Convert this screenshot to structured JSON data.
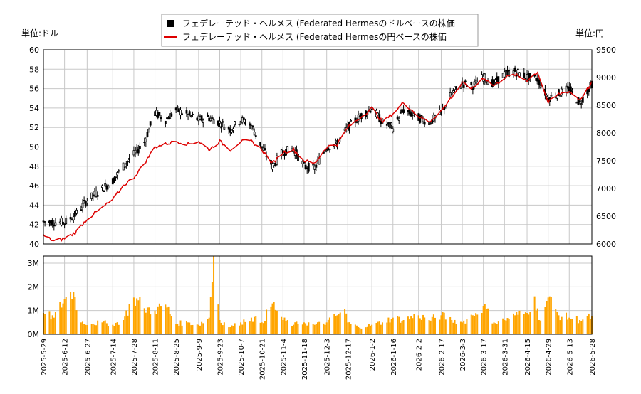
{
  "chart_data": [
    {
      "type": "candlestick+line",
      "legend": {
        "placement": "top-center",
        "entries": [
          "フェデレーテッド・ヘルメス (Federated Hermesのドルベースの株価",
          "フェデレーテッド・ヘルメス (Federated Hermesの円ベースの株価"
        ]
      },
      "left_axis_unit": "単位:ドル",
      "right_axis_unit": "単位:円",
      "ylim_left": [
        40,
        60
      ],
      "ylim_right": [
        6000,
        9500
      ],
      "left_ticks": [
        "40",
        "42",
        "44",
        "46",
        "48",
        "50",
        "52",
        "54",
        "56",
        "58",
        "60"
      ],
      "right_ticks": [
        "6000",
        "6500",
        "7000",
        "7500",
        "8000",
        "8500",
        "9000",
        "9500"
      ],
      "grid": true,
      "colors": {
        "candle": "#000000",
        "yen_line": "#dd0000",
        "volume": "#ffa500"
      },
      "series": [
        {
          "name": "フェデレーテッド・ヘルメス (Federated Hermesのドルベースの株価",
          "points": [
            [
              "2025-05-29",
              42.3
            ],
            [
              "2025-06-12",
              42.2
            ],
            [
              "2025-06-19",
              43.0
            ],
            [
              "2025-06-27",
              44.5
            ],
            [
              "2025-07-14",
              46.5
            ],
            [
              "2025-07-21",
              48.0
            ],
            [
              "2025-07-28",
              49.2
            ],
            [
              "2025-08-04",
              50.5
            ],
            [
              "2025-08-11",
              53.5
            ],
            [
              "2025-08-18",
              52.8
            ],
            [
              "2025-08-25",
              53.8
            ],
            [
              "2025-09-02",
              53.3
            ],
            [
              "2025-09-09",
              52.8
            ],
            [
              "2025-09-16",
              53.0
            ],
            [
              "2025-09-23",
              52.5
            ],
            [
              "2025-09-30",
              51.8
            ],
            [
              "2025-10-07",
              52.8
            ],
            [
              "2025-10-14",
              52.2
            ],
            [
              "2025-10-21",
              50.0
            ],
            [
              "2025-10-28",
              48.0
            ],
            [
              "2025-11-04",
              49.5
            ],
            [
              "2025-11-11",
              49.8
            ],
            [
              "2025-11-18",
              48.0
            ],
            [
              "2025-11-25",
              47.8
            ],
            [
              "2025-12-03",
              50.0
            ],
            [
              "2025-12-10",
              50.3
            ],
            [
              "2025-12-17",
              52.0
            ],
            [
              "2025-12-24",
              53.0
            ],
            [
              "2026-01-02",
              54.0
            ],
            [
              "2026-01-09",
              52.5
            ],
            [
              "2026-01-16",
              52.0
            ],
            [
              "2026-01-23",
              53.8
            ],
            [
              "2026-02-02",
              53.0
            ],
            [
              "2026-02-09",
              52.5
            ],
            [
              "2026-02-17",
              53.5
            ],
            [
              "2026-02-24",
              55.5
            ],
            [
              "2026-03-03",
              56.5
            ],
            [
              "2026-03-10",
              56.3
            ],
            [
              "2026-03-17",
              57.2
            ],
            [
              "2026-03-24",
              56.5
            ],
            [
              "2026-03-31",
              57.5
            ],
            [
              "2026-04-07",
              57.8
            ],
            [
              "2026-04-15",
              57.2
            ],
            [
              "2026-04-22",
              57.0
            ],
            [
              "2026-04-29",
              55.0
            ],
            [
              "2026-05-06",
              55.5
            ],
            [
              "2026-05-13",
              56.0
            ],
            [
              "2026-05-20",
              54.5
            ],
            [
              "2026-05-28",
              56.5
            ]
          ]
        },
        {
          "name": "フェデレーテッド・ヘルメス (Federated Hermesの円ベースの株価",
          "points": [
            [
              "2025-05-29",
              6150
            ],
            [
              "2025-06-05",
              6050
            ],
            [
              "2025-06-12",
              6100
            ],
            [
              "2025-06-19",
              6200
            ],
            [
              "2025-06-27",
              6450
            ],
            [
              "2025-07-07",
              6650
            ],
            [
              "2025-07-14",
              6800
            ],
            [
              "2025-07-21",
              7050
            ],
            [
              "2025-07-28",
              7200
            ],
            [
              "2025-08-04",
              7450
            ],
            [
              "2025-08-11",
              7750
            ],
            [
              "2025-08-18",
              7800
            ],
            [
              "2025-08-25",
              7850
            ],
            [
              "2025-09-02",
              7800
            ],
            [
              "2025-09-09",
              7850
            ],
            [
              "2025-09-16",
              7700
            ],
            [
              "2025-09-23",
              7850
            ],
            [
              "2025-09-30",
              7700
            ],
            [
              "2025-10-07",
              7850
            ],
            [
              "2025-10-14",
              7850
            ],
            [
              "2025-10-21",
              7700
            ],
            [
              "2025-10-28",
              7450
            ],
            [
              "2025-11-04",
              7650
            ],
            [
              "2025-11-11",
              7700
            ],
            [
              "2025-11-18",
              7500
            ],
            [
              "2025-11-25",
              7450
            ],
            [
              "2025-12-03",
              7750
            ],
            [
              "2025-12-10",
              7800
            ],
            [
              "2025-12-17",
              8100
            ],
            [
              "2025-12-24",
              8250
            ],
            [
              "2026-01-02",
              8450
            ],
            [
              "2026-01-09",
              8200
            ],
            [
              "2026-01-16",
              8350
            ],
            [
              "2026-01-23",
              8550
            ],
            [
              "2026-02-02",
              8300
            ],
            [
              "2026-02-09",
              8200
            ],
            [
              "2026-02-17",
              8400
            ],
            [
              "2026-02-24",
              8650
            ],
            [
              "2026-03-03",
              8900
            ],
            [
              "2026-03-10",
              8800
            ],
            [
              "2026-03-17",
              9000
            ],
            [
              "2026-03-24",
              8850
            ],
            [
              "2026-03-31",
              9000
            ],
            [
              "2026-04-07",
              9050
            ],
            [
              "2026-04-15",
              8950
            ],
            [
              "2026-04-22",
              9100
            ],
            [
              "2026-04-29",
              8550
            ],
            [
              "2026-05-06",
              8700
            ],
            [
              "2026-05-13",
              8750
            ],
            [
              "2026-05-20",
              8600
            ],
            [
              "2026-05-28",
              8900
            ]
          ]
        }
      ]
    },
    {
      "type": "bar",
      "title": "",
      "ylim": [
        0,
        3300000
      ],
      "y_ticks": [
        "0M",
        "1M",
        "2M",
        "3M"
      ],
      "x_tick_labels": [
        "2025-5-29",
        "2025-6-12",
        "2025-6-27",
        "2025-7-14",
        "2025-7-28",
        "2025-8-11",
        "2025-8-25",
        "2025-9-9",
        "2025-9-23",
        "2025-10-7",
        "2025-10-21",
        "2025-11-4",
        "2025-11-18",
        "2025-12-3",
        "2025-12-17",
        "2026-1-2",
        "2026-1-16",
        "2026-2-2",
        "2026-2-17",
        "2026-3-3",
        "2026-3-17",
        "2026-3-31",
        "2026-4-15",
        "2026-4-29",
        "2026-5-13",
        "2026-5-28"
      ],
      "series": [
        {
          "name": "volume",
          "points": [
            [
              "2025-05-29",
              900000
            ],
            [
              "2025-06-05",
              700000
            ],
            [
              "2025-06-12",
              1500000
            ],
            [
              "2025-06-18",
              1800000
            ],
            [
              "2025-06-23",
              500000
            ],
            [
              "2025-06-30",
              450000
            ],
            [
              "2025-07-07",
              500000
            ],
            [
              "2025-07-14",
              400000
            ],
            [
              "2025-07-21",
              600000
            ],
            [
              "2025-07-28",
              1550000
            ],
            [
              "2025-08-04",
              1100000
            ],
            [
              "2025-08-11",
              1000000
            ],
            [
              "2025-08-18",
              1250000
            ],
            [
              "2025-08-25",
              450000
            ],
            [
              "2025-09-02",
              500000
            ],
            [
              "2025-09-09",
              400000
            ],
            [
              "2025-09-16",
              700000
            ],
            [
              "2025-09-19",
              3300000
            ],
            [
              "2025-09-23",
              600000
            ],
            [
              "2025-09-30",
              300000
            ],
            [
              "2025-10-07",
              500000
            ],
            [
              "2025-10-14",
              700000
            ],
            [
              "2025-10-21",
              500000
            ],
            [
              "2025-10-28",
              1300000
            ],
            [
              "2025-11-04",
              600000
            ],
            [
              "2025-11-11",
              400000
            ],
            [
              "2025-11-18",
              500000
            ],
            [
              "2025-11-25",
              400000
            ],
            [
              "2025-12-03",
              500000
            ],
            [
              "2025-12-10",
              800000
            ],
            [
              "2025-12-15",
              1050000
            ],
            [
              "2025-12-17",
              500000
            ],
            [
              "2025-12-24",
              300000
            ],
            [
              "2026-01-02",
              400000
            ],
            [
              "2026-01-09",
              500000
            ],
            [
              "2026-01-16",
              700000
            ],
            [
              "2026-01-23",
              600000
            ],
            [
              "2026-02-02",
              800000
            ],
            [
              "2026-02-09",
              600000
            ],
            [
              "2026-02-17",
              800000
            ],
            [
              "2026-02-24",
              600000
            ],
            [
              "2026-03-03",
              500000
            ],
            [
              "2026-03-10",
              800000
            ],
            [
              "2026-03-17",
              1200000
            ],
            [
              "2026-03-24",
              500000
            ],
            [
              "2026-03-31",
              600000
            ],
            [
              "2026-04-07",
              800000
            ],
            [
              "2026-04-15",
              900000
            ],
            [
              "2026-04-20",
              1600000
            ],
            [
              "2026-04-23",
              600000
            ],
            [
              "2026-04-29",
              1550000
            ],
            [
              "2026-05-06",
              800000
            ],
            [
              "2026-05-13",
              700000
            ],
            [
              "2026-05-20",
              600000
            ],
            [
              "2026-05-28",
              750000
            ]
          ]
        }
      ]
    }
  ]
}
